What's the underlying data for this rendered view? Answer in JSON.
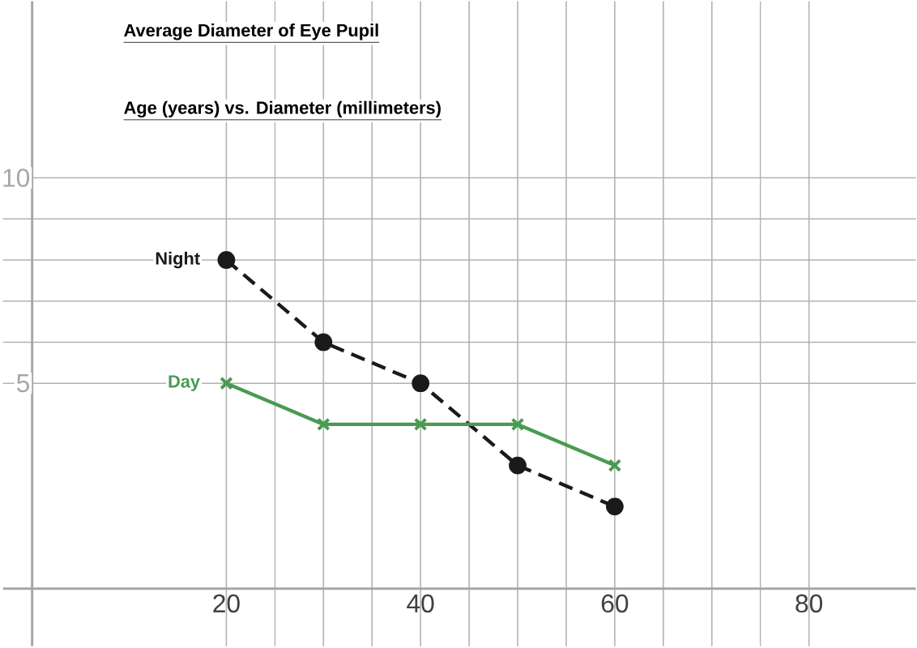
{
  "chart_data": {
    "type": "line",
    "title": "Average Diameter of Eye Pupil",
    "subtitle": "Age (years) vs. Diameter (millimeters)",
    "x": [
      20,
      30,
      40,
      50,
      60
    ],
    "series": [
      {
        "name": "Night",
        "color": "#1a1a1a",
        "values": [
          8,
          6,
          5,
          3,
          2
        ],
        "marker": "circle",
        "line_style": "dashed"
      },
      {
        "name": "Day",
        "color": "#4a9a52",
        "values": [
          5,
          4,
          4,
          4,
          3
        ],
        "marker": "cross",
        "line_style": "solid"
      }
    ],
    "xlim": [
      -3,
      91
    ],
    "ylim": [
      -1.4,
      14.3
    ],
    "xticks": [
      20,
      40,
      60,
      80
    ],
    "yticks": [
      5,
      10
    ],
    "grid": true
  }
}
